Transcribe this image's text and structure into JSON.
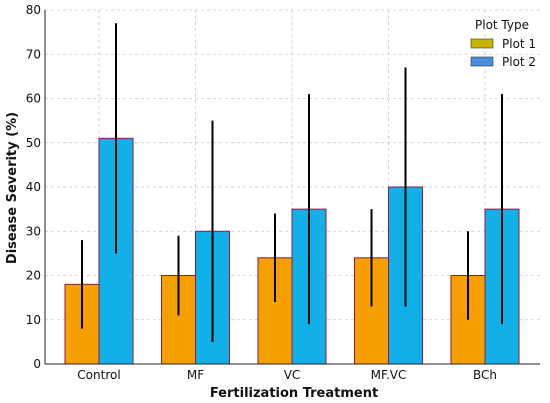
{
  "chart_data": {
    "type": "bar",
    "title": "",
    "xlabel": "Fertilization Treatment",
    "ylabel": "Disease Severity (%)",
    "ylim": [
      0,
      80
    ],
    "yticks": [
      0,
      10,
      20,
      30,
      40,
      50,
      60,
      70,
      80
    ],
    "grid": true,
    "categories": [
      "Control",
      "MF",
      "VC",
      "MF.VC",
      "BCh"
    ],
    "legend": {
      "title": "Plot Type",
      "placement": "top-right"
    },
    "series": [
      {
        "name": "Plot 1",
        "color": "#f5a000",
        "legend_color": "#c8b400",
        "values": [
          18,
          20,
          24,
          24,
          20
        ],
        "error_low": [
          8,
          11,
          14,
          13,
          10
        ],
        "error_high": [
          28,
          29,
          34,
          35,
          30
        ]
      },
      {
        "name": "Plot 2",
        "color": "#12b0e8",
        "legend_color": "#4a8fe0",
        "values": [
          51,
          30,
          35,
          40,
          35
        ],
        "error_low": [
          25,
          5,
          9,
          13,
          9
        ],
        "error_high": [
          77,
          55,
          61,
          67,
          61
        ]
      }
    ],
    "bar_edge_color": "#8b1a4a"
  }
}
